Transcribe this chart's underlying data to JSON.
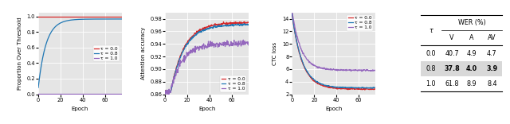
{
  "colors": {
    "tau_0.0": "#d62728",
    "tau_0.8": "#1f77b4",
    "tau_1.0": "#9467bd"
  },
  "plot1": {
    "ylabel": "Proportion Over Threshold",
    "xlabel": "Epoch",
    "ylim": [
      0.0,
      1.05
    ],
    "xlim": [
      0,
      75
    ],
    "xticks": [
      0,
      20,
      40,
      60
    ],
    "yticks": [
      0.0,
      0.2,
      0.4,
      0.6,
      0.8,
      1.0
    ]
  },
  "plot2": {
    "ylabel": "Attention accuracy",
    "xlabel": "Epoch",
    "ylim": [
      0.86,
      0.99
    ],
    "xlim": [
      0,
      75
    ],
    "xticks": [
      0,
      20,
      40,
      60
    ],
    "yticks": [
      0.86,
      0.88,
      0.9,
      0.92,
      0.94,
      0.96,
      0.98
    ]
  },
  "plot3": {
    "ylabel": "CTC loss",
    "xlabel": "Epoch",
    "ylim": [
      2,
      15
    ],
    "xlim": [
      0,
      75
    ],
    "xticks": [
      0,
      20,
      40,
      60
    ],
    "yticks": [
      2,
      4,
      6,
      8,
      10,
      12,
      14
    ]
  },
  "legend_labels": [
    "τ = 0.0",
    "τ = 0.8",
    "τ = 1.0"
  ],
  "table": {
    "tau_col": [
      "0.0",
      "0.8",
      "1.0"
    ],
    "V_col": [
      "40.7",
      "37.8",
      "61.8"
    ],
    "A_col": [
      "4.9",
      "4.0",
      "8.9"
    ],
    "AV_col": [
      "4.7",
      "3.9",
      "8.4"
    ],
    "bold_row": 1,
    "header1": "WER (%)",
    "col_headers": [
      "τ",
      "V",
      "A",
      "AV"
    ]
  },
  "background_color": "#e5e5e5"
}
